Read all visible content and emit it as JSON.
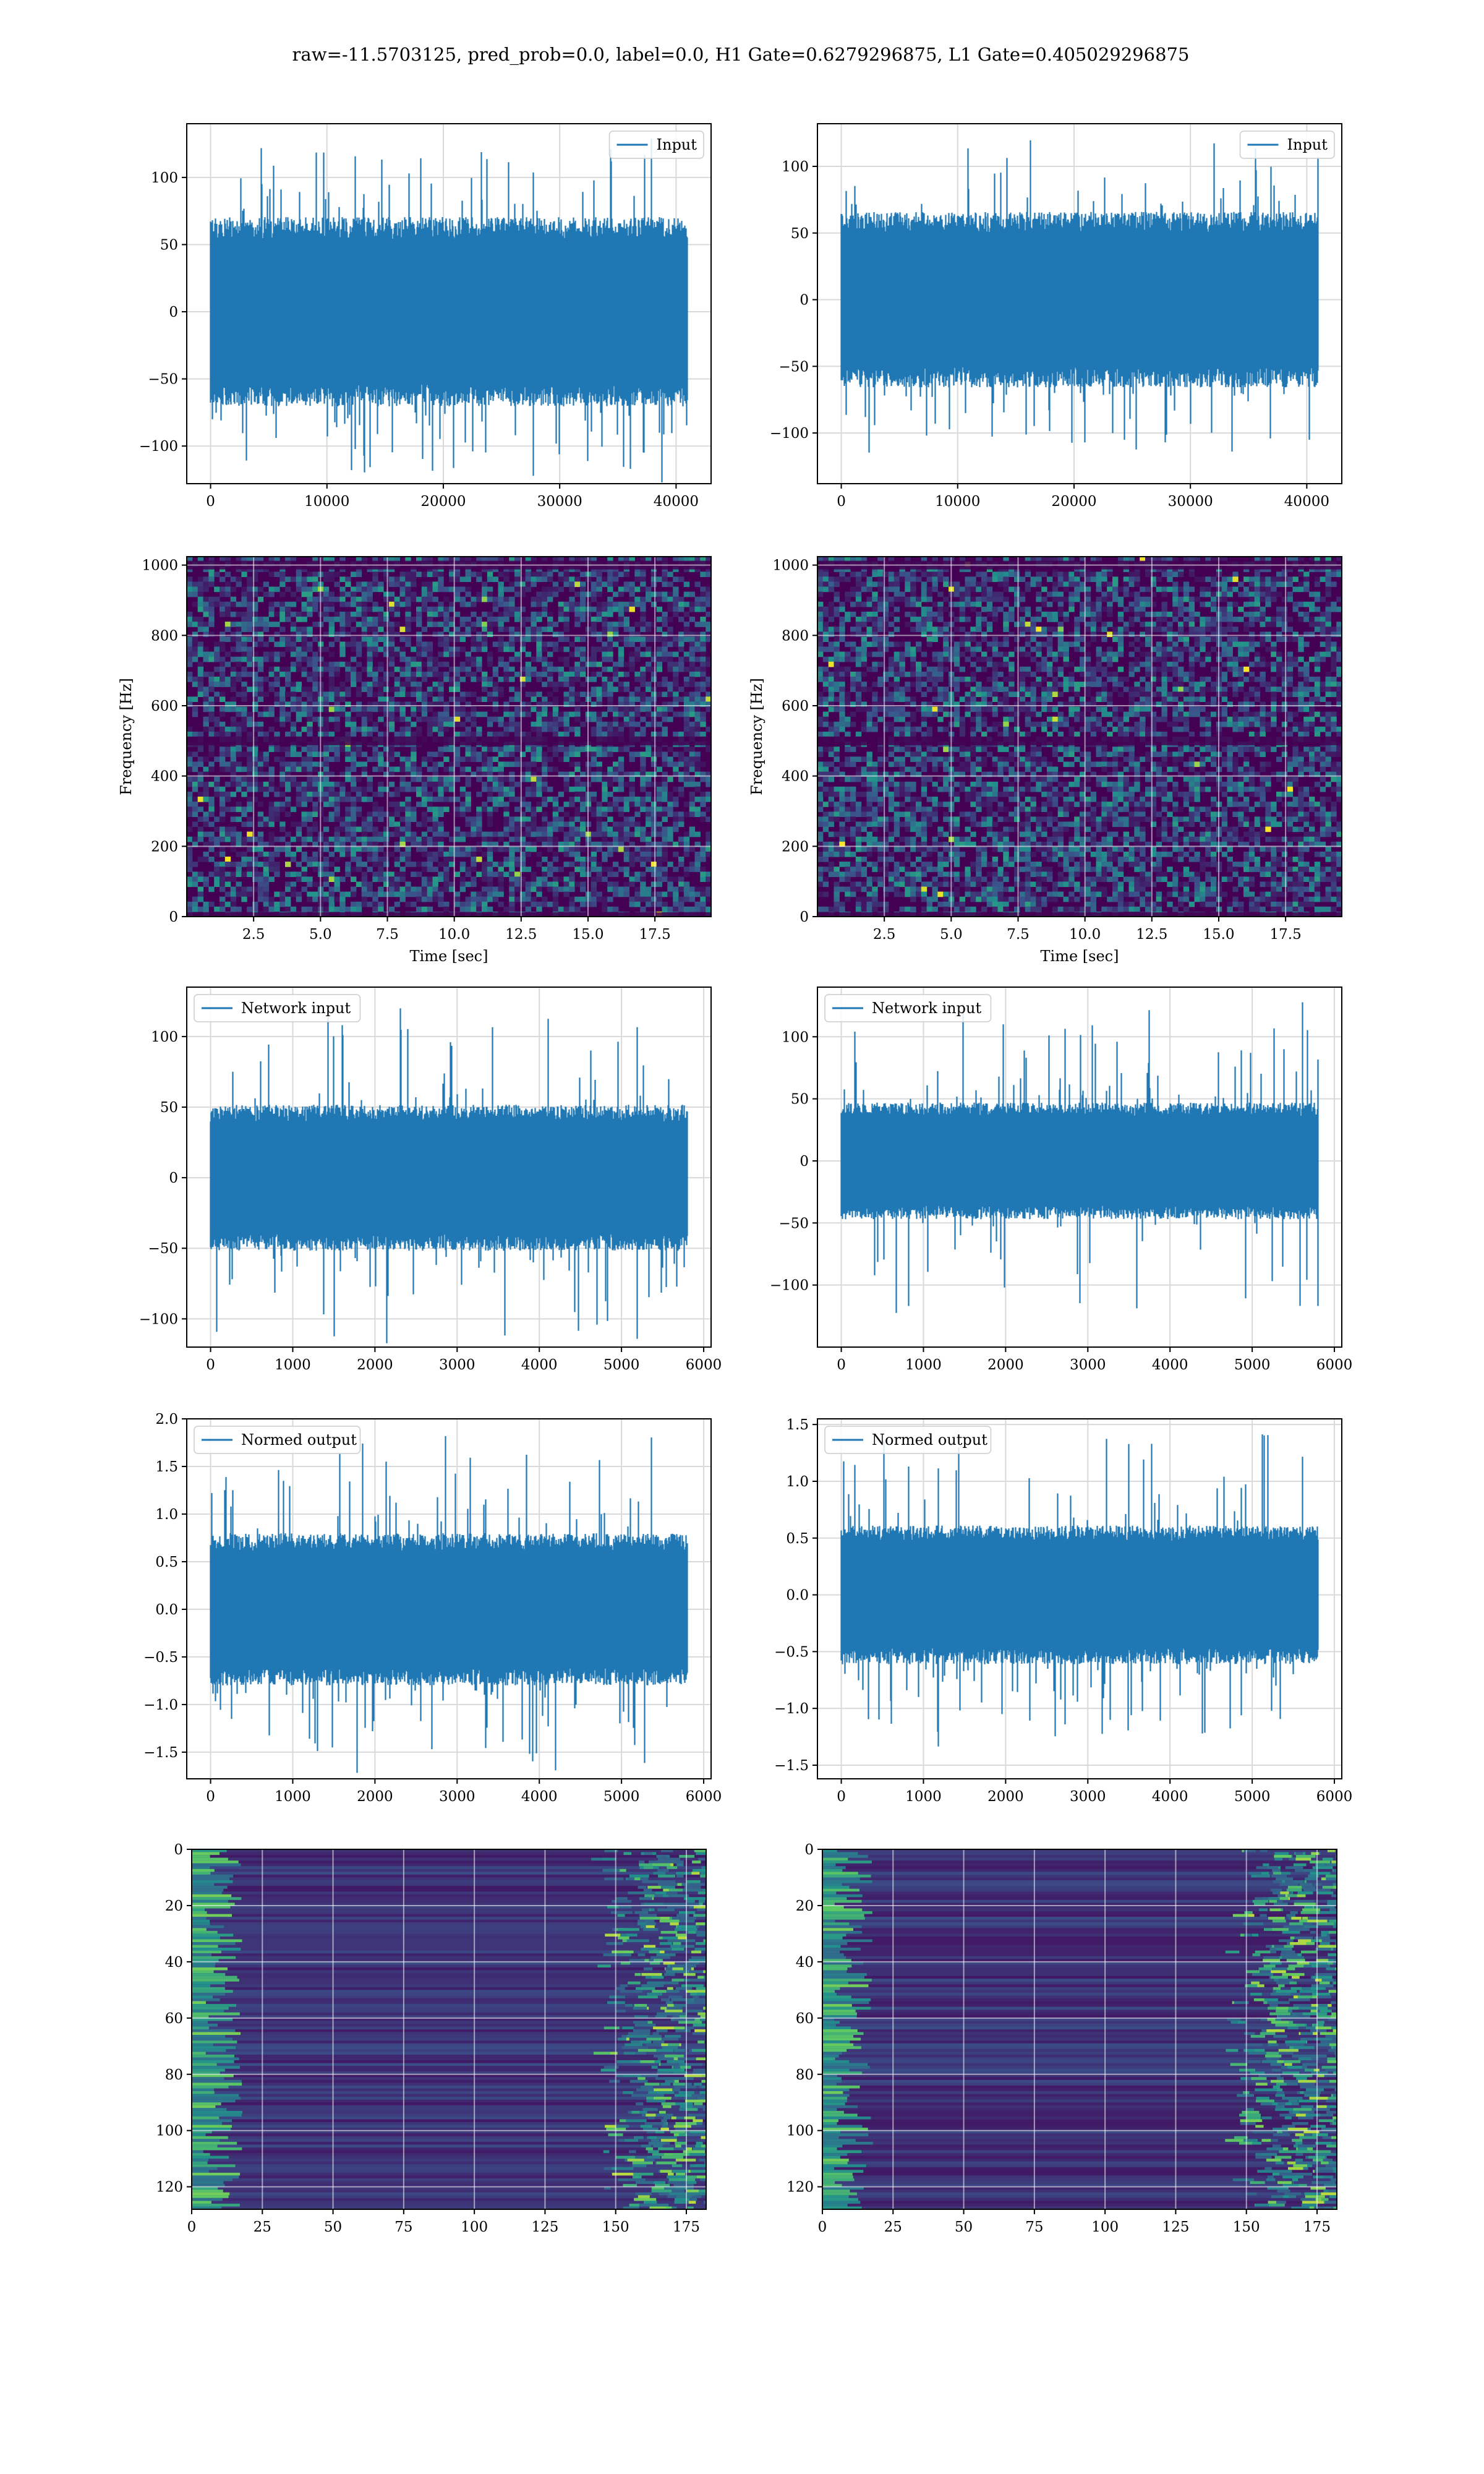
{
  "suptitle": "raw=-11.5703125, pred_prob=0.0, label=0.0, H1 Gate=0.6279296875, L1 Gate=0.405029296875",
  "colors": {
    "line": "#1f77b4",
    "grid": "#d9d9d9",
    "viridis_low": "#440154",
    "viridis_mid": "#21918c",
    "viridis_high": "#fde725"
  },
  "chart_data": [
    {
      "id": "input-h1",
      "type": "line",
      "series": [
        {
          "name": "Input"
        }
      ],
      "amplitude": 75,
      "peak": 133,
      "n_points": 40960,
      "xlim": [
        -2048,
        43008
      ],
      "ylim": [
        -128,
        140
      ],
      "xticks": [
        0,
        10000,
        20000,
        30000,
        40000
      ],
      "yticks": [
        -100,
        -50,
        0,
        50,
        100
      ],
      "legend_position": "upper right",
      "grid": true
    },
    {
      "id": "input-l1",
      "type": "line",
      "series": [
        {
          "name": "Input"
        }
      ],
      "amplitude": 70,
      "peak": 120,
      "n_points": 40960,
      "xlim": [
        -2048,
        43008
      ],
      "ylim": [
        -138,
        132
      ],
      "xticks": [
        0,
        10000,
        20000,
        30000,
        40000
      ],
      "yticks": [
        -100,
        -50,
        0,
        50,
        100
      ],
      "legend_position": "upper right",
      "grid": true
    },
    {
      "id": "spectrogram-h1",
      "type": "heatmap",
      "colormap": "viridis",
      "xlim": [
        0,
        19.6
      ],
      "ylim": [
        0,
        1024
      ],
      "xticks": [
        2.5,
        5.0,
        7.5,
        10.0,
        12.5,
        15.0,
        17.5
      ],
      "yticks": [
        0,
        200,
        400,
        600,
        800,
        1000
      ],
      "xlabel": "Time [sec]",
      "ylabel": "Frequency [Hz]",
      "dark_band_hz": [
        0,
        500,
        1000
      ],
      "grid": true
    },
    {
      "id": "spectrogram-l1",
      "type": "heatmap",
      "colormap": "viridis",
      "xlim": [
        0,
        19.6
      ],
      "ylim": [
        0,
        1024
      ],
      "xticks": [
        2.5,
        5.0,
        7.5,
        10.0,
        12.5,
        15.0,
        17.5
      ],
      "yticks": [
        0,
        200,
        400,
        600,
        800,
        1000
      ],
      "xlabel": "Time [sec]",
      "ylabel": "Frequency [Hz]",
      "dark_band_hz": [
        0,
        500,
        1000
      ],
      "grid": true
    },
    {
      "id": "network-input-h1",
      "type": "line",
      "series": [
        {
          "name": "Network input"
        }
      ],
      "amplitude": 55,
      "peak": 125,
      "n_points": 5800,
      "xlim": [
        -290,
        6090
      ],
      "ylim": [
        -120,
        135
      ],
      "xticks": [
        0,
        1000,
        2000,
        3000,
        4000,
        5000,
        6000
      ],
      "yticks": [
        -100,
        -50,
        0,
        50,
        100
      ],
      "legend_position": "upper left",
      "grid": true
    },
    {
      "id": "network-input-l1",
      "type": "line",
      "series": [
        {
          "name": "Network input"
        }
      ],
      "amplitude": 50,
      "peak": 130,
      "n_points": 5800,
      "xlim": [
        -290,
        6090
      ],
      "ylim": [
        -150,
        140
      ],
      "xticks": [
        0,
        1000,
        2000,
        3000,
        4000,
        5000,
        6000
      ],
      "yticks": [
        -100,
        -50,
        0,
        50,
        100
      ],
      "legend_position": "upper left",
      "grid": true
    },
    {
      "id": "normed-output-h1",
      "type": "line",
      "series": [
        {
          "name": "Normed output"
        }
      ],
      "amplitude": 0.85,
      "peak": 1.83,
      "n_points": 5800,
      "xlim": [
        -290,
        6090
      ],
      "ylim": [
        -1.78,
        2.0
      ],
      "xticks": [
        0,
        1000,
        2000,
        3000,
        4000,
        5000,
        6000
      ],
      "yticks": [
        -1.5,
        -1.0,
        -0.5,
        0.0,
        0.5,
        1.0,
        1.5,
        2.0
      ],
      "legend_position": "upper left",
      "grid": true
    },
    {
      "id": "normed-output-l1",
      "type": "line",
      "series": [
        {
          "name": "Normed output"
        }
      ],
      "amplitude": 0.65,
      "peak": 1.42,
      "n_points": 5800,
      "xlim": [
        -290,
        6090
      ],
      "ylim": [
        -1.62,
        1.55
      ],
      "xticks": [
        0,
        1000,
        2000,
        3000,
        4000,
        5000,
        6000
      ],
      "yticks": [
        -1.5,
        -1.0,
        -0.5,
        0.0,
        0.5,
        1.0,
        1.5
      ],
      "legend_position": "upper left",
      "grid": true
    },
    {
      "id": "feature-map-h1",
      "type": "heatmap",
      "colormap": "viridis",
      "xlim": [
        0,
        182
      ],
      "ylim": [
        128,
        0
      ],
      "xticks": [
        0,
        25,
        50,
        75,
        100,
        125,
        150,
        175
      ],
      "yticks": [
        0,
        20,
        40,
        60,
        80,
        100,
        120
      ],
      "grid": true
    },
    {
      "id": "feature-map-l1",
      "type": "heatmap",
      "colormap": "viridis",
      "xlim": [
        0,
        182
      ],
      "ylim": [
        128,
        0
      ],
      "xticks": [
        0,
        25,
        50,
        75,
        100,
        125,
        150,
        175
      ],
      "yticks": [
        0,
        20,
        40,
        60,
        80,
        100,
        120
      ],
      "grid": true
    }
  ]
}
